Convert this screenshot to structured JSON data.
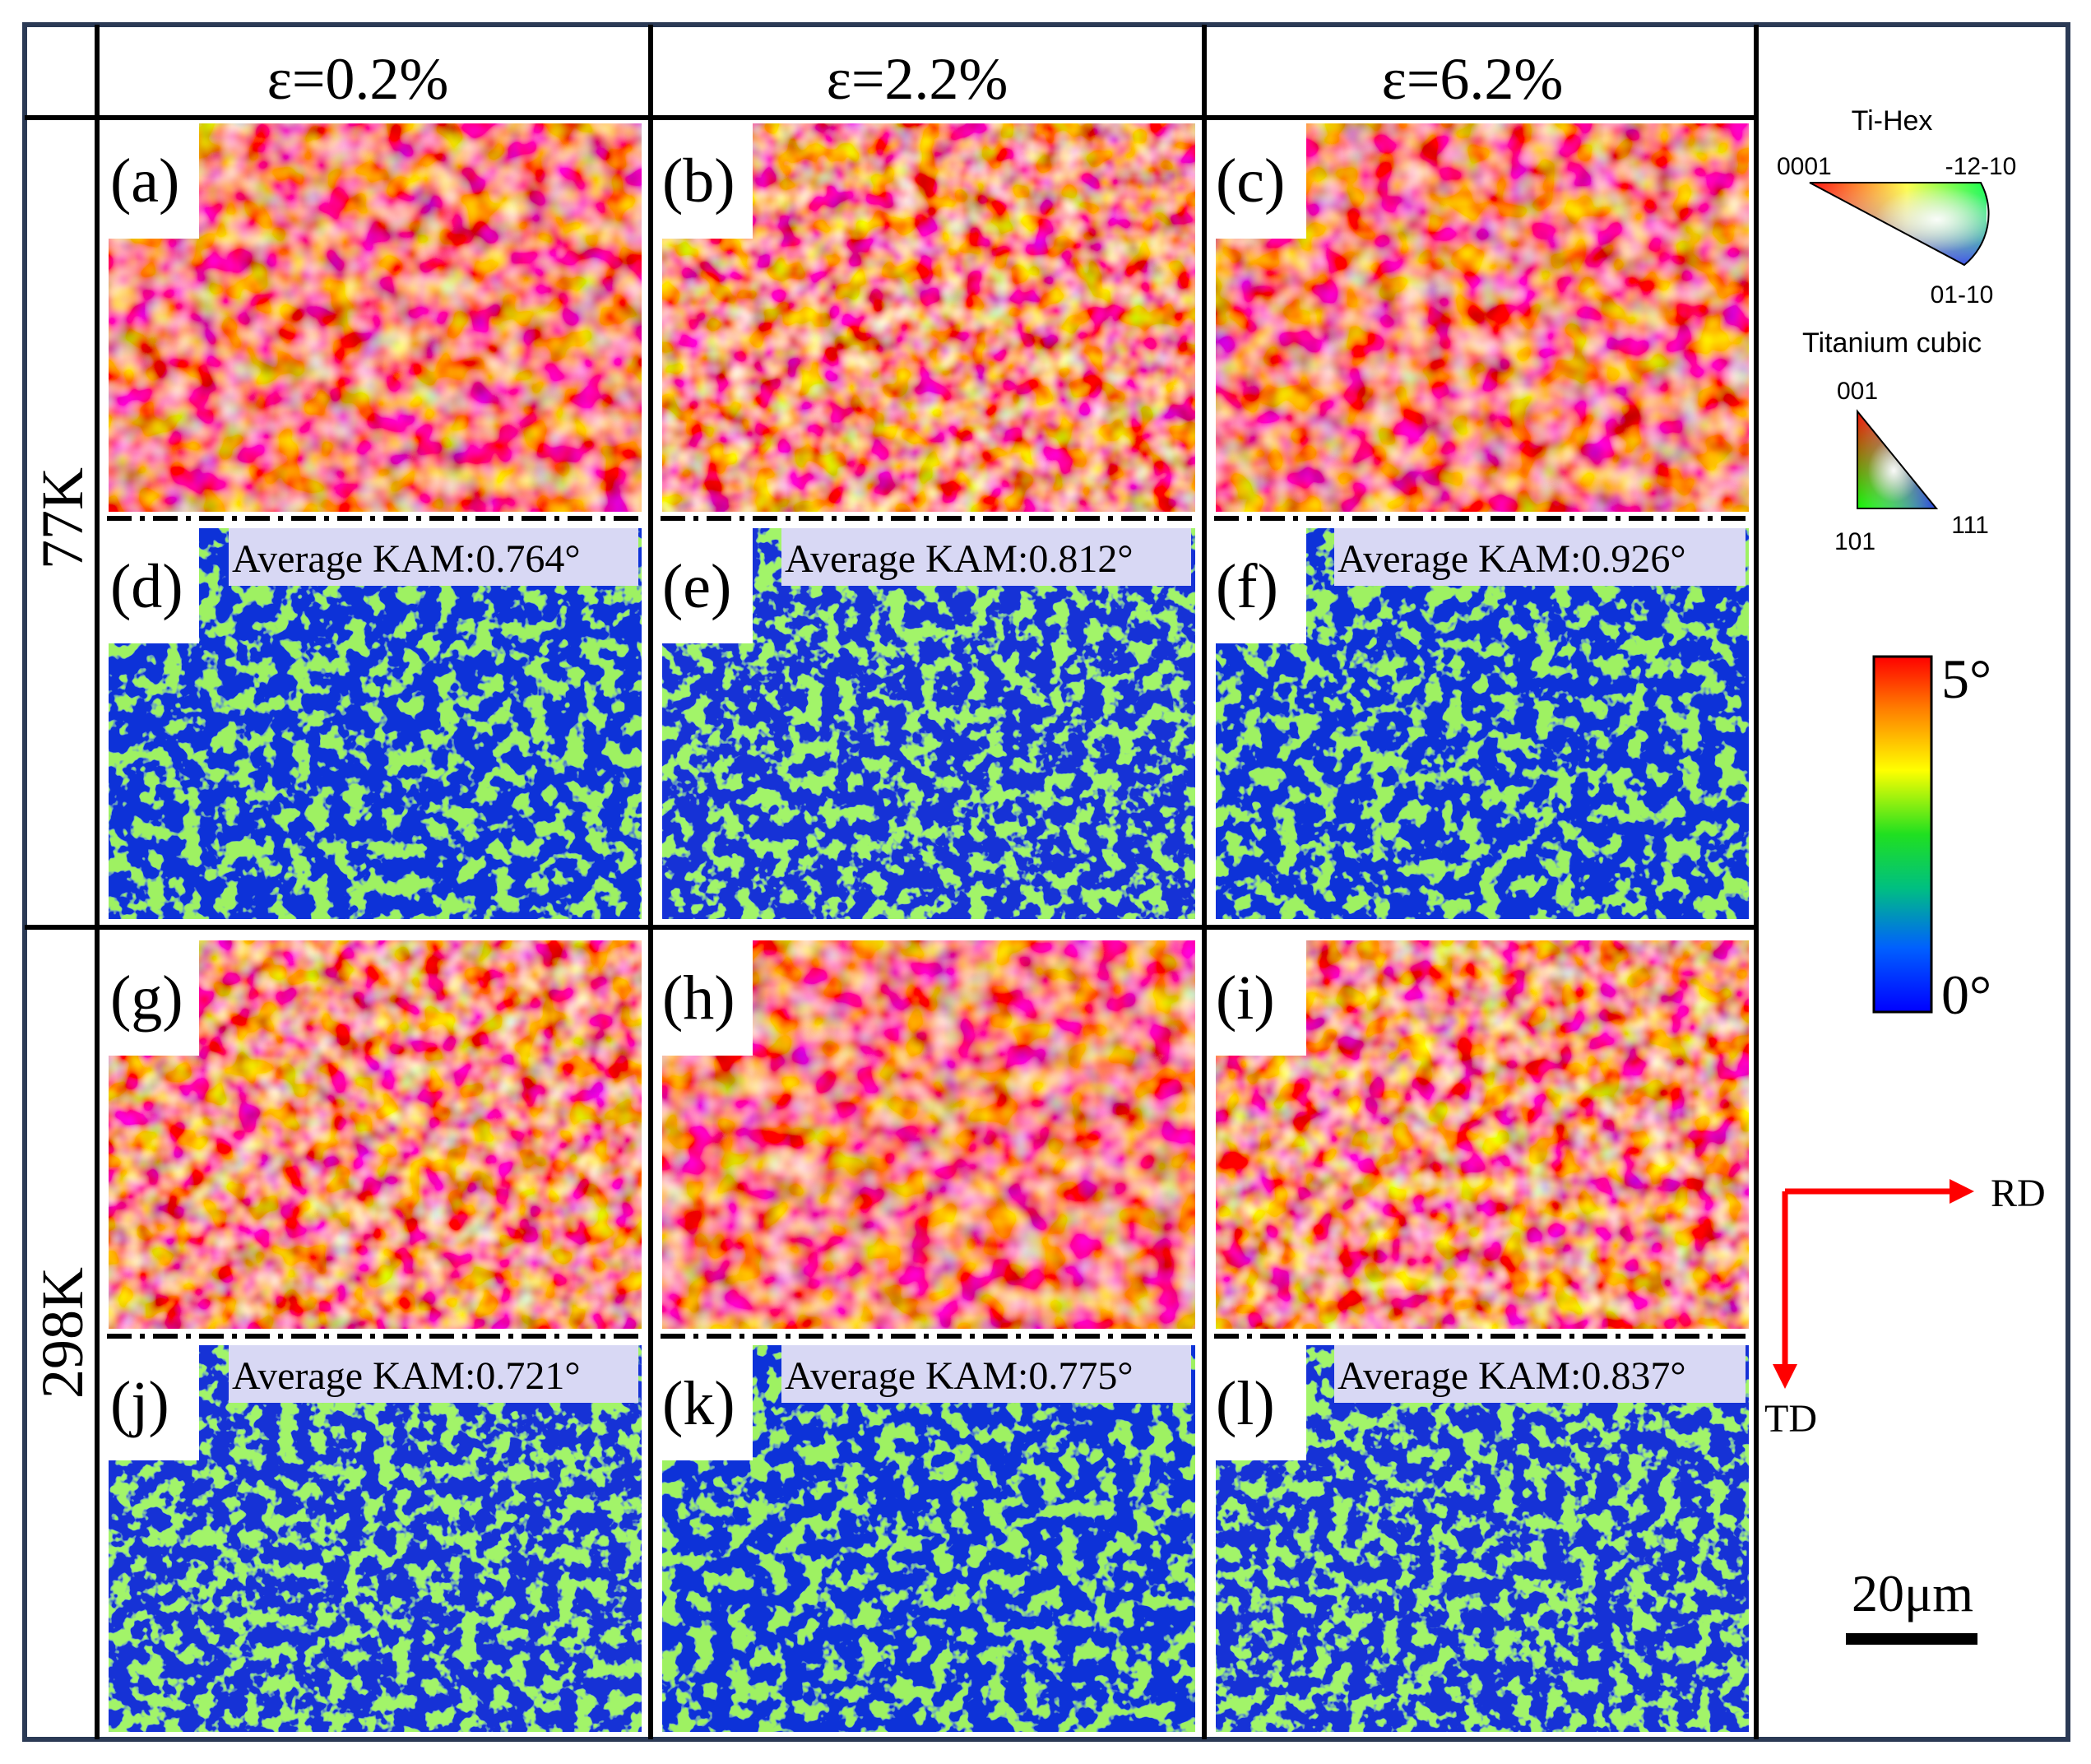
{
  "columns": [
    "ε=0.2%",
    "ε=2.2%",
    "ε=6.2%"
  ],
  "rows": [
    "77K",
    "298K"
  ],
  "panels": {
    "a": "(a)",
    "b": "(b)",
    "c": "(c)",
    "d": "(d)",
    "e": "(e)",
    "f": "(f)",
    "g": "(g)",
    "h": "(h)",
    "i": "(i)",
    "j": "(j)",
    "k": "(k)",
    "l": "(l)"
  },
  "kam": {
    "d": "Average KAM:0.764°",
    "e": "Average KAM:0.812°",
    "f": "Average KAM:0.926°",
    "j": "Average KAM:0.721°",
    "k": "Average KAM:0.775°",
    "l": "Average KAM:0.837°"
  },
  "kam_values_deg": {
    "d": 0.764,
    "e": 0.812,
    "f": 0.926,
    "j": 0.721,
    "k": 0.775,
    "l": 0.837
  },
  "legend": {
    "hex_title": "Ti-Hex",
    "hex_0001": "0001",
    "hex_1210": "-12-10",
    "hex_0110": "01-10",
    "cubic_title": "Titanium cubic",
    "cubic_001": "001",
    "cubic_101": "101",
    "cubic_111": "111",
    "kam_max": "5°",
    "kam_min": "0°",
    "rd": "RD",
    "td": "TD",
    "scale": "20μm"
  },
  "colors": {
    "frame": "#2b3a55",
    "kam_blue": "#1030d8",
    "kam_green": "#58e020",
    "ipf_red": "#f04040",
    "arrow_red": "#ff0000"
  }
}
